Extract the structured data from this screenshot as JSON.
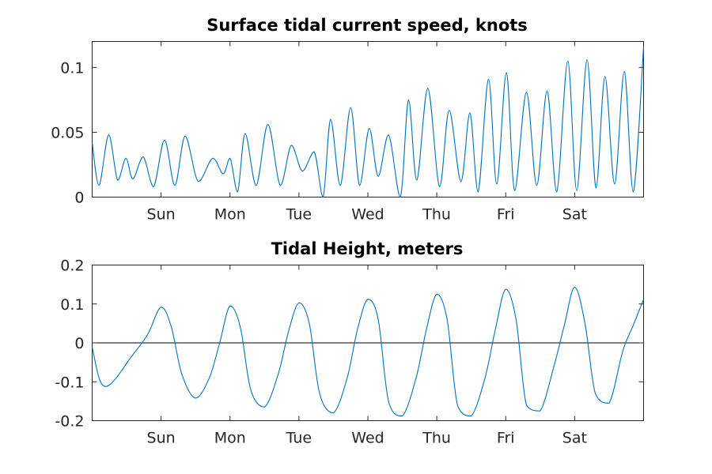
{
  "chart_data": [
    {
      "type": "line",
      "title": "Surface tidal current speed, knots",
      "xlabel": "",
      "ylabel": "",
      "x_ticks": [
        "Sun",
        "Mon",
        "Tue",
        "Wed",
        "Thu",
        "Fri",
        "Sat"
      ],
      "xlim": [
        0,
        8
      ],
      "ylim": [
        0,
        0.12
      ],
      "y_ticks": [
        0,
        0.05,
        0.1
      ],
      "y_tick_labels": [
        "0",
        "0.05",
        "0.1"
      ],
      "grid": false,
      "color": "#0072BD",
      "series": [
        {
          "name": "",
          "x": [
            0.0,
            0.1,
            0.24,
            0.37,
            0.49,
            0.59,
            0.74,
            0.89,
            1.05,
            1.2,
            1.35,
            1.54,
            1.75,
            1.9,
            2.0,
            2.11,
            2.22,
            2.38,
            2.55,
            2.73,
            2.89,
            3.05,
            3.22,
            3.35,
            3.46,
            3.6,
            3.75,
            3.88,
            4.02,
            4.15,
            4.3,
            4.47,
            4.59,
            4.71,
            4.87,
            5.04,
            5.18,
            5.35,
            5.48,
            5.6,
            5.75,
            5.87,
            6.01,
            6.13,
            6.3,
            6.45,
            6.6,
            6.74,
            6.9,
            7.03,
            7.18,
            7.31,
            7.44,
            7.58,
            7.72,
            7.85,
            8.0
          ],
          "y": [
            0.042,
            0.009,
            0.048,
            0.013,
            0.03,
            0.014,
            0.031,
            0.008,
            0.044,
            0.009,
            0.047,
            0.012,
            0.03,
            0.018,
            0.03,
            0.004,
            0.049,
            0.009,
            0.056,
            0.009,
            0.04,
            0.02,
            0.035,
            0.0,
            0.06,
            0.009,
            0.069,
            0.009,
            0.053,
            0.016,
            0.048,
            0.0,
            0.075,
            0.013,
            0.084,
            0.008,
            0.067,
            0.012,
            0.065,
            0.004,
            0.091,
            0.01,
            0.096,
            0.005,
            0.081,
            0.009,
            0.082,
            0.004,
            0.105,
            0.005,
            0.106,
            0.007,
            0.093,
            0.01,
            0.097,
            0.004,
            0.116
          ]
        }
      ]
    },
    {
      "type": "line",
      "title": "Tidal Height, meters",
      "xlabel": "",
      "ylabel": "",
      "x_ticks": [
        "Sun",
        "Mon",
        "Tue",
        "Wed",
        "Thu",
        "Fri",
        "Sat"
      ],
      "xlim": [
        0,
        8
      ],
      "ylim": [
        -0.2,
        0.2
      ],
      "y_ticks": [
        -0.2,
        -0.1,
        0,
        0.1,
        0.2
      ],
      "y_tick_labels": [
        "-0.2",
        "-0.1",
        "0",
        "0.1",
        "0.2"
      ],
      "grid": false,
      "zero_line": true,
      "color": "#0072BD",
      "series": [
        {
          "name": "",
          "x": [
            0.0,
            0.1,
            0.2,
            0.35,
            0.55,
            0.8,
            1.0,
            1.15,
            1.3,
            1.5,
            1.7,
            1.85,
            2.0,
            2.15,
            2.3,
            2.5,
            2.7,
            2.85,
            3.0,
            3.15,
            3.3,
            3.5,
            3.7,
            3.85,
            4.0,
            4.15,
            4.3,
            4.5,
            4.7,
            4.85,
            5.0,
            5.15,
            5.3,
            5.5,
            5.7,
            5.85,
            6.0,
            6.15,
            6.3,
            6.5,
            6.7,
            6.85,
            7.0,
            7.15,
            7.3,
            7.5,
            7.7,
            7.85,
            8.0
          ],
          "y": [
            -0.01,
            -0.09,
            -0.112,
            -0.09,
            -0.04,
            0.02,
            0.092,
            0.04,
            -0.08,
            -0.142,
            -0.09,
            0.0,
            0.095,
            0.04,
            -0.12,
            -0.165,
            -0.08,
            0.03,
            0.103,
            0.05,
            -0.13,
            -0.18,
            -0.09,
            0.035,
            0.112,
            0.06,
            -0.15,
            -0.188,
            -0.09,
            0.035,
            0.125,
            0.06,
            -0.16,
            -0.188,
            -0.09,
            0.035,
            0.138,
            0.06,
            -0.16,
            -0.175,
            -0.06,
            0.045,
            0.143,
            0.05,
            -0.13,
            -0.155,
            -0.02,
            0.045,
            0.112
          ]
        }
      ]
    }
  ]
}
